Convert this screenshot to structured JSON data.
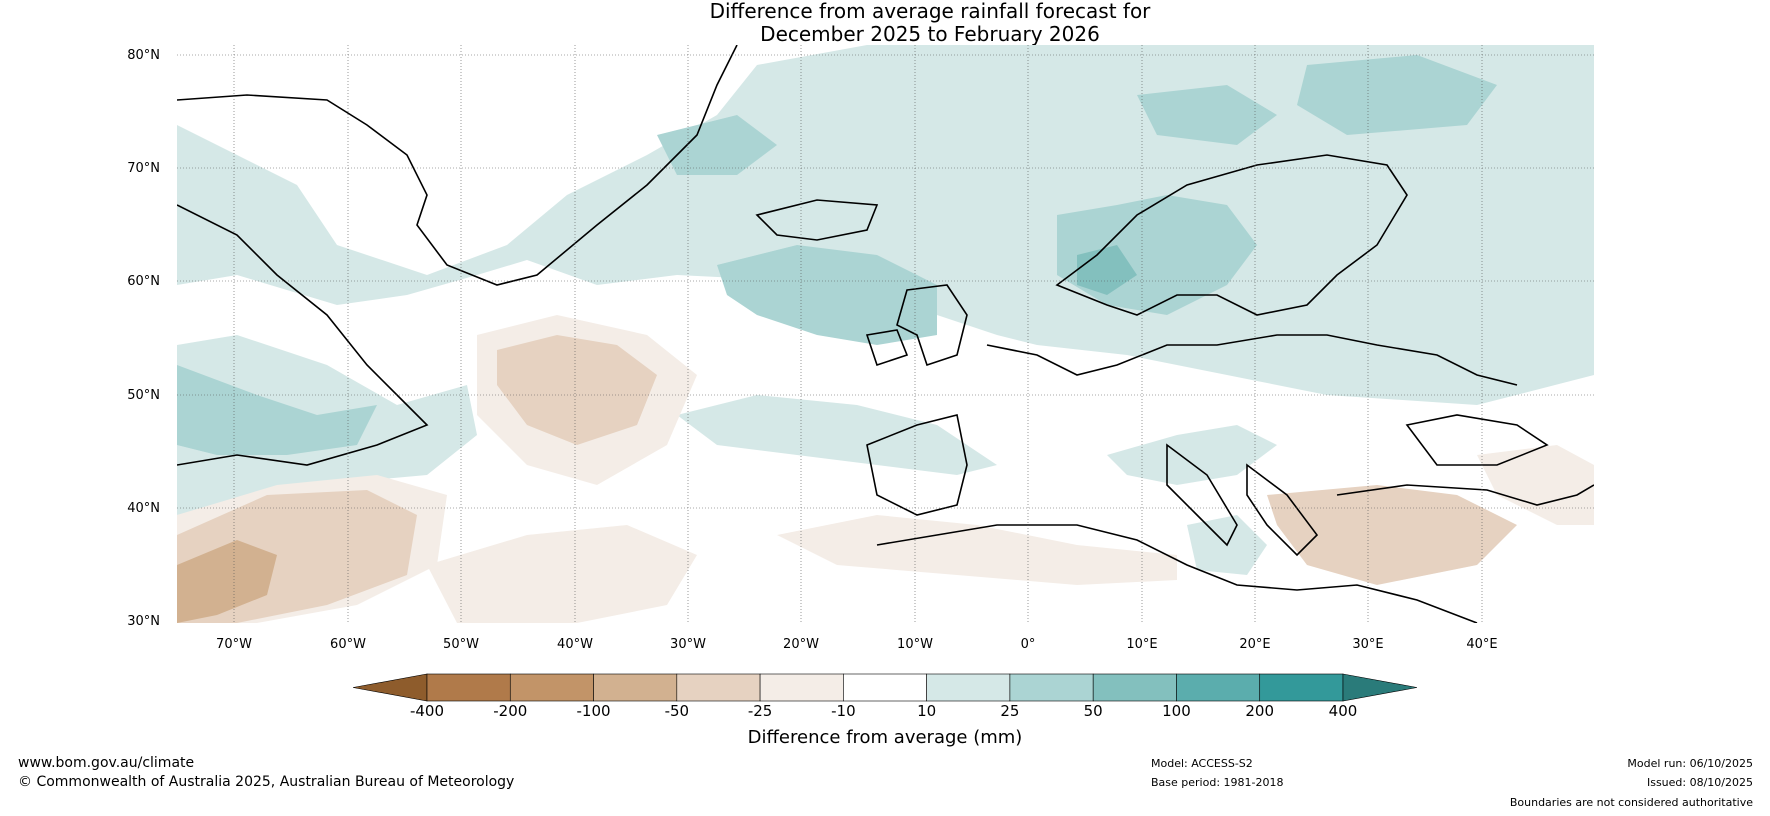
{
  "title": {
    "line1": "Difference from average rainfall forecast for",
    "line2": "December 2025 to February 2026"
  },
  "latitudes": [
    "80°N",
    "70°N",
    "60°N",
    "50°N",
    "40°N",
    "30°N"
  ],
  "longitudes": [
    "70°W",
    "60°W",
    "50°W",
    "40°W",
    "30°W",
    "20°W",
    "10°W",
    "0°",
    "10°E",
    "20°E",
    "30°E",
    "40°E"
  ],
  "colorbar": {
    "ticks": [
      "-400",
      "-200",
      "-100",
      "-50",
      "-25",
      "-10",
      "10",
      "25",
      "50",
      "100",
      "200",
      "400"
    ],
    "colors": [
      "#b07a4a",
      "#c29468",
      "#d2b190",
      "#e6d2c1",
      "#f4ede7",
      "#ffffff",
      "#d5e8e7",
      "#abd4d3",
      "#83c0be",
      "#5badad",
      "#33999a"
    ],
    "under_color": "#8e5c2c",
    "over_color": "#2a7b7a",
    "label": "Difference from average (mm)"
  },
  "footer": {
    "website": "www.bom.gov.au/climate",
    "copyright": "© Commonwealth of Australia 2025, Australian Bureau of Meteorology",
    "model": "Model: ACCESS-S2",
    "base_period": "Base period: 1981-2018",
    "model_run": "Model run: 06/10/2025",
    "issued": "Issued: 08/10/2025",
    "disclaimer": "Boundaries are not considered authoritative"
  }
}
